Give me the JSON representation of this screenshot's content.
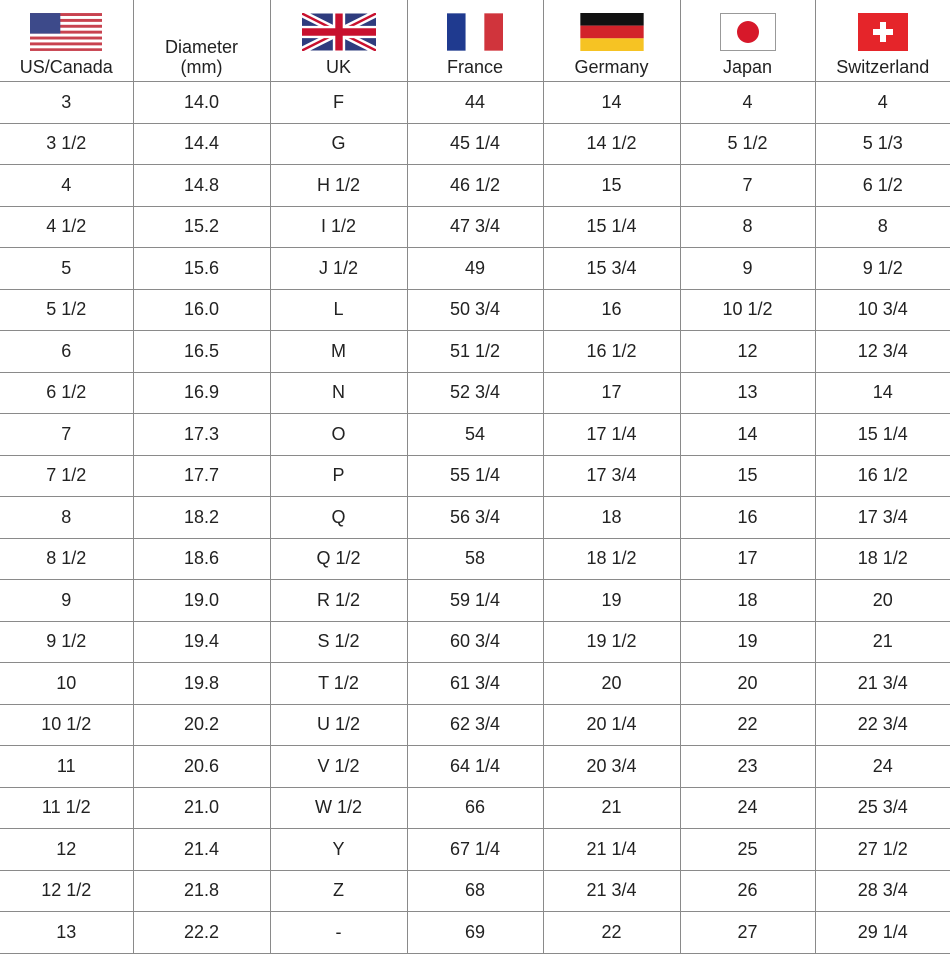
{
  "table": {
    "headers": [
      {
        "label": "US/Canada",
        "flag": "us-flag-icon"
      },
      {
        "label": "Diameter\n(mm)",
        "line1": "Diameter",
        "line2": "(mm)"
      },
      {
        "label": "UK",
        "flag": "uk-flag-icon"
      },
      {
        "label": "France",
        "flag": "france-flag-icon"
      },
      {
        "label": "Germany",
        "flag": "germany-flag-icon"
      },
      {
        "label": "Japan",
        "flag": "japan-flag-icon"
      },
      {
        "label": "Switzerland",
        "flag": "switzerland-flag-icon"
      }
    ],
    "rows": [
      [
        "3",
        "14.0",
        "F",
        "44",
        "14",
        "4",
        "4"
      ],
      [
        "3 1/2",
        "14.4",
        "G",
        "45 1/4",
        "14 1/2",
        "5 1/2",
        "5 1/3"
      ],
      [
        "4",
        "14.8",
        "H 1/2",
        "46 1/2",
        "15",
        "7",
        "6 1/2"
      ],
      [
        "4 1/2",
        "15.2",
        "I 1/2",
        "47 3/4",
        "15 1/4",
        "8",
        "8"
      ],
      [
        "5",
        "15.6",
        "J 1/2",
        "49",
        "15 3/4",
        "9",
        "9 1/2"
      ],
      [
        "5 1/2",
        "16.0",
        "L",
        "50 3/4",
        "16",
        "10 1/2",
        "10 3/4"
      ],
      [
        "6",
        "16.5",
        "M",
        "51 1/2",
        "16 1/2",
        "12",
        "12 3/4"
      ],
      [
        "6 1/2",
        "16.9",
        "N",
        "52 3/4",
        "17",
        "13",
        "14"
      ],
      [
        "7",
        "17.3",
        "O",
        "54",
        "17 1/4",
        "14",
        "15 1/4"
      ],
      [
        "7 1/2",
        "17.7",
        "P",
        "55 1/4",
        "17 3/4",
        "15",
        "16 1/2"
      ],
      [
        "8",
        "18.2",
        "Q",
        "56 3/4",
        "18",
        "16",
        "17 3/4"
      ],
      [
        "8 1/2",
        "18.6",
        "Q 1/2",
        "58",
        "18 1/2",
        "17",
        "18 1/2"
      ],
      [
        "9",
        "19.0",
        "R 1/2",
        "59 1/4",
        "19",
        "18",
        "20"
      ],
      [
        "9 1/2",
        "19.4",
        "S 1/2",
        "60 3/4",
        "19 1/2",
        "19",
        "21"
      ],
      [
        "10",
        "19.8",
        "T 1/2",
        "61 3/4",
        "20",
        "20",
        "21 3/4"
      ],
      [
        "10 1/2",
        "20.2",
        "U 1/2",
        "62 3/4",
        "20 1/4",
        "22",
        "22 3/4"
      ],
      [
        "11",
        "20.6",
        "V 1/2",
        "64 1/4",
        "20 3/4",
        "23",
        "24"
      ],
      [
        "11 1/2",
        "21.0",
        "W 1/2",
        "66",
        "21",
        "24",
        "25 3/4"
      ],
      [
        "12",
        "21.4",
        "Y",
        "67 1/4",
        "21 1/4",
        "25",
        "27 1/2"
      ],
      [
        "12 1/2",
        "21.8",
        "Z",
        "68",
        "21 3/4",
        "26",
        "28 3/4"
      ],
      [
        "13",
        "22.2",
        "-",
        "69",
        "22",
        "27",
        "29 1/4"
      ]
    ]
  }
}
